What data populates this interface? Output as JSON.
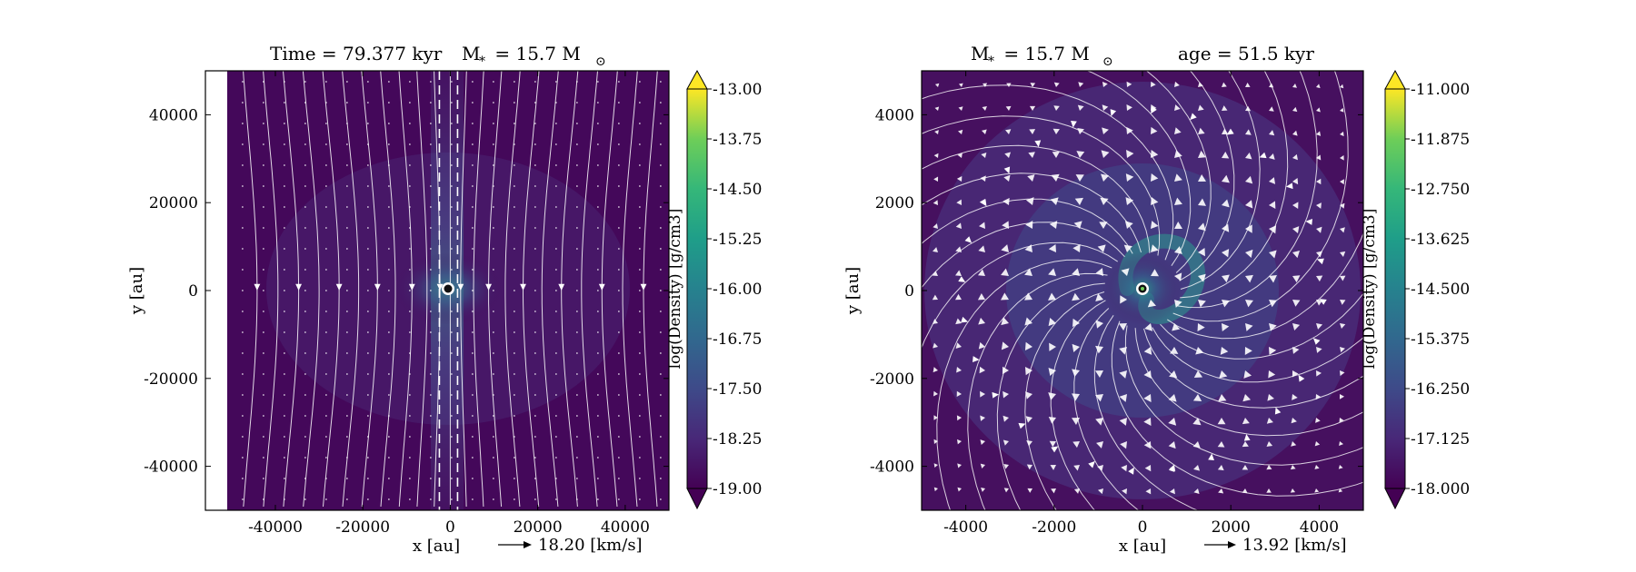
{
  "chart_data": [
    {
      "type": "heatmap",
      "title_parts": [
        "Time = 79.377 kyr",
        "M",
        "*",
        " = 15.7 M",
        "⊙"
      ],
      "xlabel": "x [au]",
      "ylabel": "y [au]",
      "xlim": [
        -56000,
        50000
      ],
      "ylim": [
        -50000,
        50000
      ],
      "data_xlim": [
        -50000,
        50000
      ],
      "x_ticks": [
        -40000,
        -20000,
        0,
        20000,
        40000
      ],
      "y_ticks": [
        40000,
        20000,
        0,
        -20000,
        -40000
      ],
      "x_tick_labels": [
        "-40000",
        "-20000",
        "0",
        "20000",
        "40000"
      ],
      "y_tick_labels": [
        "40000",
        "20000",
        "0",
        "-20000",
        "-40000"
      ],
      "quiver_key": {
        "label": "18.20 [km/s]"
      },
      "field": "bipolar",
      "colorbar": {
        "label": "log(Density) [g/cm3]",
        "range": [
          -19.0,
          -13.0
        ],
        "ticks": [
          -13.0,
          -13.75,
          -14.5,
          -15.25,
          -16.0,
          -16.75,
          -17.5,
          -18.25,
          -19.0
        ],
        "tick_labels": [
          "-13.00",
          "-13.75",
          "-14.50",
          "-15.25",
          "-16.00",
          "-16.75",
          "-17.50",
          "-18.25",
          "-19.00"
        ],
        "colormap": "viridis",
        "extend": "both"
      },
      "sink": {
        "x": 0,
        "y": 0
      },
      "colors": {
        "background": "#44085a",
        "streamline": "#ffffff",
        "dense": "#3b7f8f"
      }
    },
    {
      "type": "heatmap",
      "title_parts": [
        "M",
        "*",
        " = 15.7 M",
        "⊙",
        "age = 51.5 kyr"
      ],
      "xlabel": "x [au]",
      "ylabel": "y [au]",
      "xlim": [
        -5000,
        5000
      ],
      "ylim": [
        -5000,
        5000
      ],
      "data_xlim": [
        -5000,
        5000
      ],
      "x_ticks": [
        -4000,
        -2000,
        0,
        2000,
        4000
      ],
      "y_ticks": [
        4000,
        2000,
        0,
        -2000,
        -4000
      ],
      "x_tick_labels": [
        "-4000",
        "-2000",
        "0",
        "2000",
        "4000"
      ],
      "y_tick_labels": [
        "4000",
        "2000",
        "0",
        "-2000",
        "-4000"
      ],
      "quiver_key": {
        "label": "13.92 [km/s]"
      },
      "field": "spiral",
      "colorbar": {
        "label": "log(Density) [g/cm3]",
        "range": [
          -18.0,
          -11.0
        ],
        "ticks": [
          -11.0,
          -11.875,
          -12.75,
          -13.625,
          -14.5,
          -15.375,
          -16.25,
          -17.125,
          -18.0
        ],
        "tick_labels": [
          "-11.000",
          "-11.875",
          "-12.750",
          "-13.625",
          "-14.500",
          "-15.375",
          "-16.250",
          "-17.125",
          "-18.000"
        ],
        "colormap": "viridis",
        "extend": "both"
      },
      "sink": {
        "x": 0,
        "y": 0
      },
      "colors": {
        "background": "#46105f",
        "streamline": "#ffffff",
        "dense": "#2a9a8a"
      }
    }
  ]
}
